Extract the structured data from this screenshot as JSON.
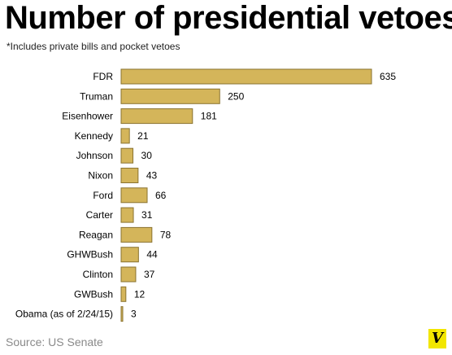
{
  "chart_data": {
    "type": "bar",
    "orientation": "horizontal",
    "title": "Number of presidential vetoes",
    "subtitle": "*Includes private bills and pocket vetoes",
    "categories": [
      "FDR",
      "Truman",
      "Eisenhower",
      "Kennedy",
      "Johnson",
      "Nixon",
      "Ford",
      "Carter",
      "Reagan",
      "GHWBush",
      "Clinton",
      "GWBush",
      "Obama (as of 2/24/15)"
    ],
    "values": [
      635,
      250,
      181,
      21,
      30,
      43,
      66,
      31,
      78,
      44,
      37,
      12,
      3
    ],
    "xlim": [
      0,
      635
    ],
    "grid": false,
    "source": "Source: US Senate"
  },
  "colors": {
    "bar_fill": "#d4b55a",
    "bar_stroke": "#8a7330",
    "logo_bg": "#f2e600"
  },
  "logo": {
    "text": "V"
  }
}
